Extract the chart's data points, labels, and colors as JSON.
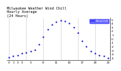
{
  "title": "Milwaukee Weather Wind Chill\nHourly Average\n(24 Hours)",
  "hours": [
    0,
    1,
    2,
    3,
    4,
    5,
    6,
    7,
    8,
    9,
    10,
    11,
    12,
    13,
    14,
    15,
    16,
    17,
    18,
    19,
    20,
    21,
    22,
    23
  ],
  "wind_chill": [
    -4.8,
    -4.5,
    -4.2,
    -3.8,
    -3.5,
    -3.2,
    -2.8,
    -1.5,
    0.5,
    2.5,
    3.8,
    4.5,
    4.8,
    4.6,
    4.0,
    3.0,
    1.5,
    -0.5,
    -2.0,
    -3.2,
    -3.8,
    -4.2,
    -4.5,
    -4.9
  ],
  "dot_color": "#0000cc",
  "bg_color": "#ffffff",
  "grid_color": "#888888",
  "legend_bg": "#4444ff",
  "legend_text_color": "#ffffff",
  "ylim": [
    -5.5,
    5.5
  ],
  "ytick_values": [
    5,
    4,
    3,
    2,
    1,
    0,
    -1,
    -2,
    -3,
    -4,
    -5
  ],
  "ytick_labels": [
    "5",
    "4",
    "3",
    "2",
    "1",
    "0",
    "-1",
    "-2",
    "-3",
    "-4",
    "-5"
  ],
  "xlim": [
    -0.5,
    23.5
  ],
  "xtick_positions": [
    0,
    1,
    2,
    3,
    5,
    8,
    11,
    14,
    17,
    20,
    23
  ],
  "xtick_labels": [
    "0",
    "1",
    "2",
    "3",
    "5",
    "8",
    "11",
    "14",
    "17",
    "20",
    "23"
  ],
  "title_fontsize": 3.8,
  "tick_label_size": 3.0,
  "dot_size": 2.5,
  "vgrid_positions": [
    0,
    4,
    8,
    12,
    16,
    20
  ]
}
